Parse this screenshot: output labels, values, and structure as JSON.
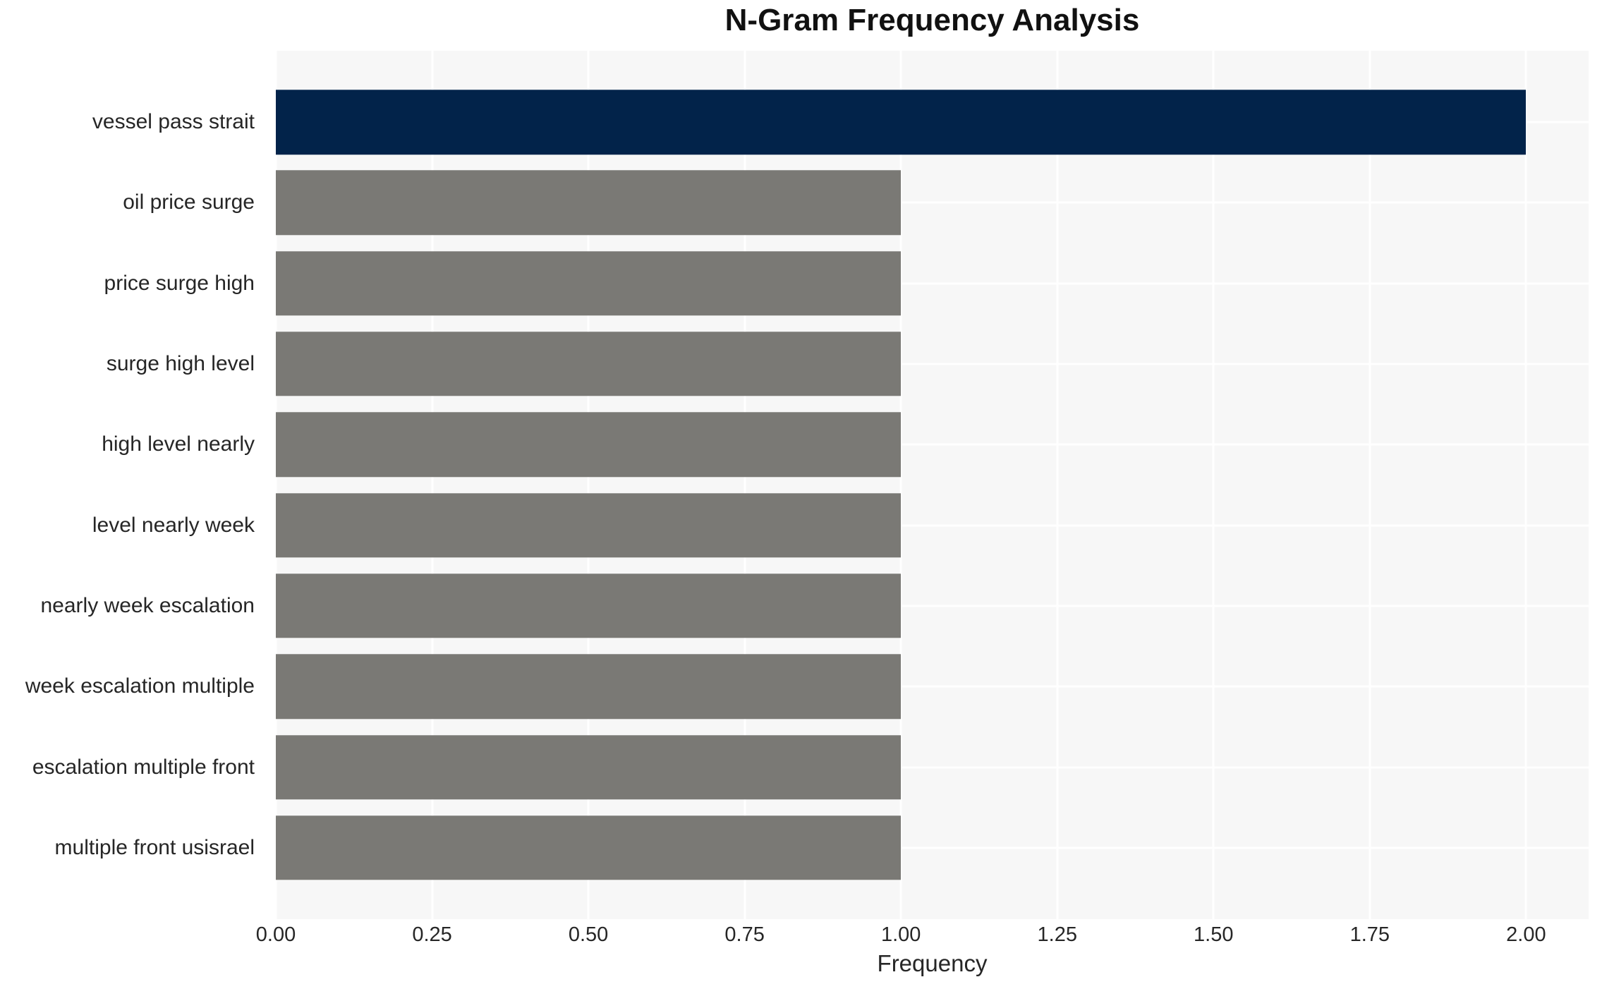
{
  "title": "N-Gram Frequency Analysis",
  "chart_data": {
    "type": "bar",
    "orientation": "horizontal",
    "title": "N-Gram Frequency Analysis",
    "xlabel": "Frequency",
    "ylabel": "",
    "categories": [
      "vessel pass strait",
      "oil price surge",
      "price surge high",
      "surge high level",
      "high level nearly",
      "level nearly week",
      "nearly week escalation",
      "week escalation multiple",
      "escalation multiple front",
      "multiple front usisrael"
    ],
    "values": [
      2.0,
      1.0,
      1.0,
      1.0,
      1.0,
      1.0,
      1.0,
      1.0,
      1.0,
      1.0
    ],
    "bar_colors": [
      "#02234A",
      "#7A7975",
      "#7A7975",
      "#7A7975",
      "#7A7975",
      "#7A7975",
      "#7A7975",
      "#7A7975",
      "#7A7975",
      "#7A7975"
    ],
    "xlim": [
      0,
      2.1
    ],
    "xtick_labels": [
      "0.00",
      "0.25",
      "0.50",
      "0.75",
      "1.00",
      "1.25",
      "1.50",
      "1.75",
      "2.00"
    ],
    "xtick_values": [
      0.0,
      0.25,
      0.5,
      0.75,
      1.0,
      1.25,
      1.5,
      1.75,
      2.0
    ],
    "grid": true,
    "legend": null,
    "colors": {
      "plot_background": "#F7F7F7",
      "grid_line": "#FFFFFF",
      "highlight_bar": "#02234A",
      "base_bar": "#7A7975",
      "title_text": "#111111",
      "axis_text": "#262626"
    }
  }
}
